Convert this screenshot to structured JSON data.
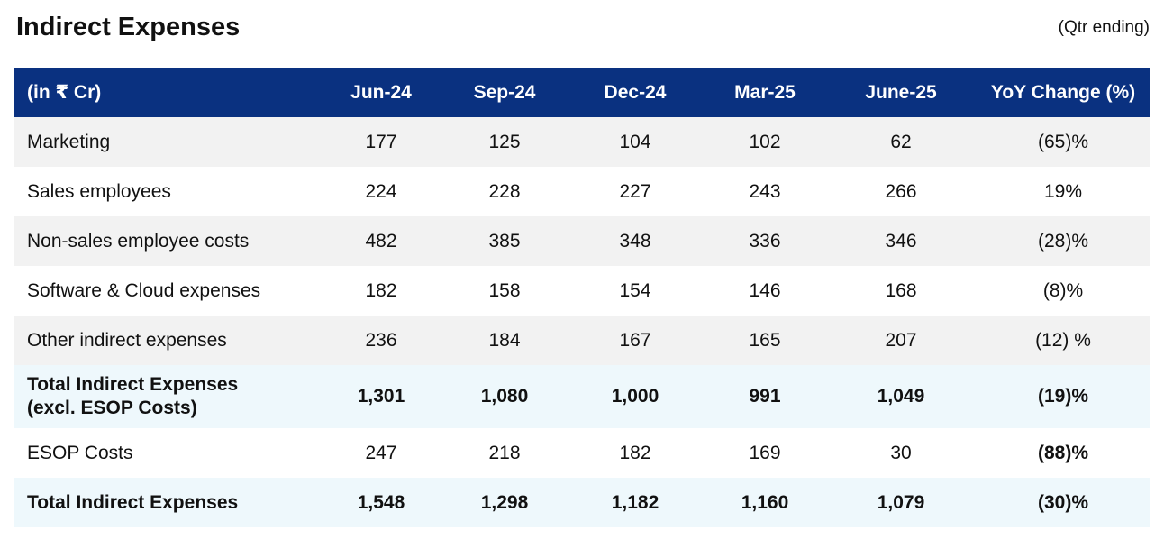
{
  "header": {
    "title": "Indirect Expenses",
    "subtitle": "(Qtr ending)"
  },
  "table": {
    "columns": [
      "(in ₹ Cr)",
      "Jun-24",
      "Sep-24",
      "Dec-24",
      "Mar-25",
      "June-25",
      "YoY Change (%)"
    ],
    "rows": [
      {
        "label": "Marketing",
        "values": [
          "177",
          "125",
          "104",
          "102",
          "62"
        ],
        "yoy": "(65)%"
      },
      {
        "label": "Sales employees",
        "values": [
          "224",
          "228",
          "227",
          "243",
          "266"
        ],
        "yoy": "19%"
      },
      {
        "label": "Non-sales employee costs",
        "values": [
          "482",
          "385",
          "348",
          "336",
          "346"
        ],
        "yoy": "(28)%"
      },
      {
        "label": "Software & Cloud expenses",
        "values": [
          "182",
          "158",
          "154",
          "146",
          "168"
        ],
        "yoy": "(8)%"
      },
      {
        "label": "Other indirect expenses",
        "values": [
          "236",
          "184",
          "167",
          "165",
          "207"
        ],
        "yoy": "(12) %"
      },
      {
        "label_line1": "Total Indirect Expenses",
        "label_line2": "(excl. ESOP Costs)",
        "values": [
          "1,301",
          "1,080",
          "1,000",
          "991",
          "1,049"
        ],
        "yoy": "(19)%"
      },
      {
        "label": "ESOP Costs",
        "values": [
          "247",
          "218",
          "182",
          "169",
          "30"
        ],
        "yoy": "(88)%"
      },
      {
        "label": "Total Indirect Expenses",
        "values": [
          "1,548",
          "1,298",
          "1,182",
          "1,160",
          "1,079"
        ],
        "yoy": "(30)%"
      }
    ]
  },
  "colors": {
    "header_bg": "#0a3180",
    "stripe_bg": "#f2f2f2",
    "total_bg": "#eef8fc"
  }
}
